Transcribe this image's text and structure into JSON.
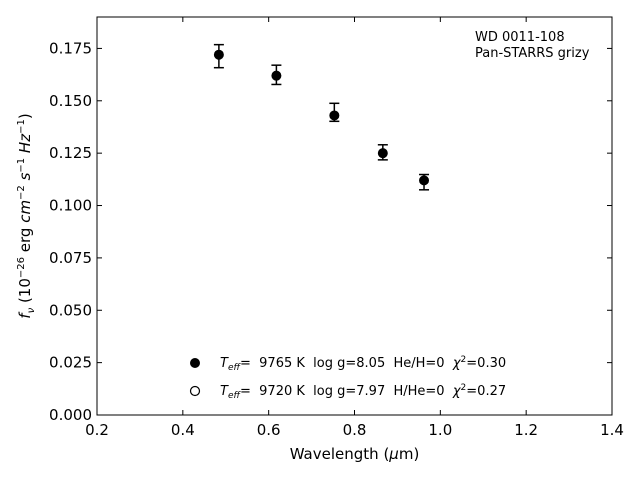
{
  "chart_data": {
    "type": "scatter",
    "title": "",
    "xlabel": "Wavelength (μm)",
    "ylabel": "f_ν (10^-26 erg cm^-2 s^-1 Hz^-1)",
    "xlim": [
      0.2,
      1.4
    ],
    "ylim": [
      0.0,
      0.19
    ],
    "xticks": [
      0.2,
      0.4,
      0.6,
      0.8,
      1.0,
      1.2,
      1.4
    ],
    "yticks": [
      0.0,
      0.025,
      0.05,
      0.075,
      0.1,
      0.125,
      0.15,
      0.175
    ],
    "xtick_labels": [
      "0.2",
      "0.4",
      "0.6",
      "0.8",
      "1.0",
      "1.2",
      "1.4"
    ],
    "ytick_labels": [
      "0.000",
      "0.025",
      "0.050",
      "0.075",
      "0.100",
      "0.125",
      "0.150",
      "0.175"
    ],
    "grid": false,
    "annotation": [
      "WD 0011-108",
      "Pan-STARRS grizy"
    ],
    "annotation_placement": "top-right",
    "legend_placement": "lower-center",
    "observed": {
      "marker": "filled-circle",
      "x": [
        0.484,
        0.618,
        0.753,
        0.866,
        0.962
      ],
      "y": [
        0.172,
        0.162,
        0.143,
        0.125,
        0.112
      ],
      "yerr_low": [
        0.0062,
        0.0042,
        0.0028,
        0.0032,
        0.0045
      ],
      "yerr_high": [
        0.0048,
        0.005,
        0.0058,
        0.004,
        0.0028
      ]
    },
    "legend": [
      {
        "marker": "filled-circle",
        "teff_symbol": "T",
        "teff_sub": "eff",
        "teff_value": "=  9765 K",
        "params": "  log g=8.05  He/H=0  ",
        "chi_symbol": "χ",
        "chi_sup": "2",
        "chi_value": "=0.30"
      },
      {
        "marker": "open-circle",
        "teff_symbol": "T",
        "teff_sub": "eff",
        "teff_value": "=  9720 K",
        "params": "  log g=7.97  H/He=0  ",
        "chi_symbol": "χ",
        "chi_sup": "2",
        "chi_value": "=0.27"
      }
    ],
    "colors": {
      "marker": "#000000",
      "axes": "#000000",
      "background": "#ffffff"
    }
  }
}
